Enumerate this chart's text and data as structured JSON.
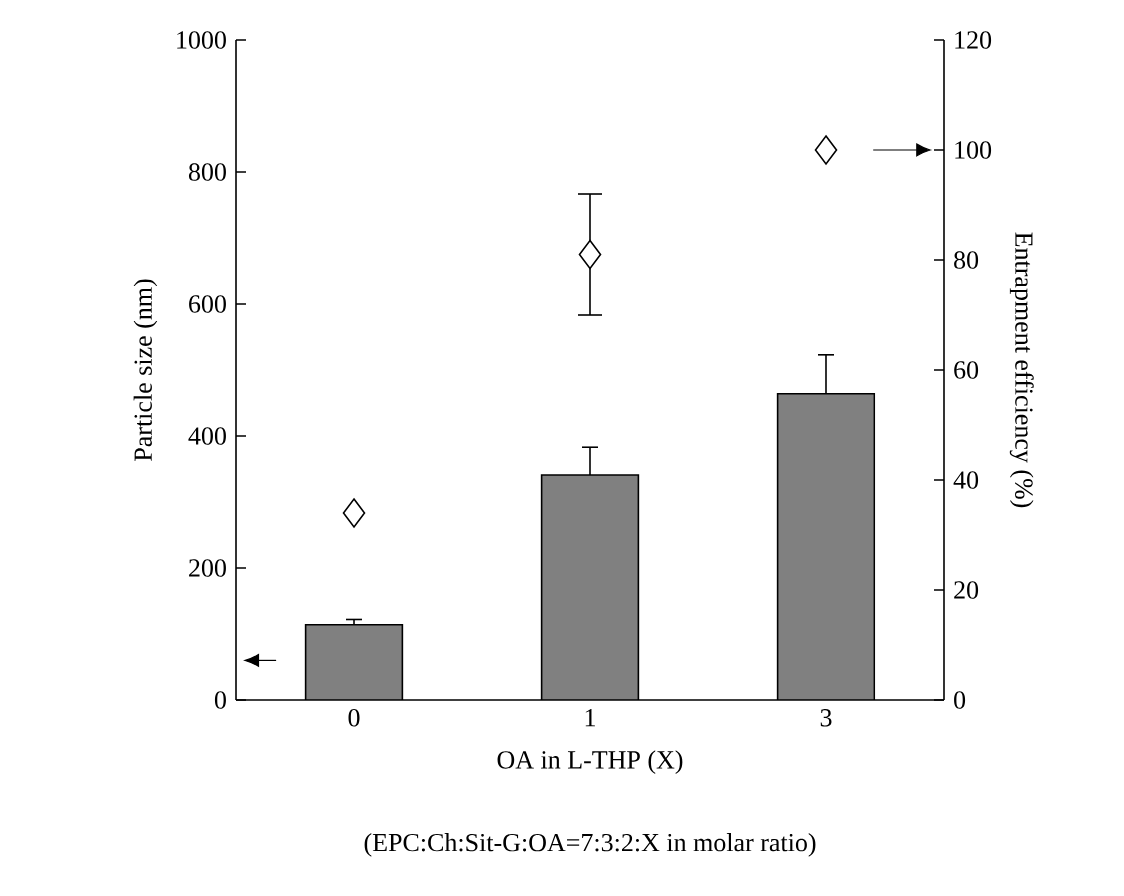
{
  "chart_data": {
    "type": "bar",
    "categories": [
      "0",
      "1",
      "3"
    ],
    "xlabel": "OA in L-THP (X)",
    "ylabel": "Particle size (nm)",
    "y2label": "Entrapment efficiency (%)",
    "annotations": [
      "(EPC:Ch:Sit-G:OA=7:3:2:X in molar ratio)"
    ],
    "series": [
      {
        "type": "bar",
        "axis": "y",
        "color": "#808080",
        "values": [
          114,
          341,
          464
        ],
        "errors": [
          [
            114,
            122
          ],
          [
            341,
            383
          ],
          [
            464,
            523
          ]
        ]
      },
      {
        "type": "scatter",
        "axis": "y2",
        "color": "#ffffff",
        "marker": "diamond",
        "values": [
          34,
          81,
          100
        ],
        "errors": [
          null,
          11,
          null
        ]
      }
    ],
    "ylim": [
      0,
      1000
    ],
    "yticks": [
      0,
      200,
      400,
      600,
      800,
      1000
    ],
    "y2lim": [
      0,
      120
    ],
    "y2ticks": [
      0,
      20,
      40,
      60,
      80,
      100,
      120
    ]
  }
}
